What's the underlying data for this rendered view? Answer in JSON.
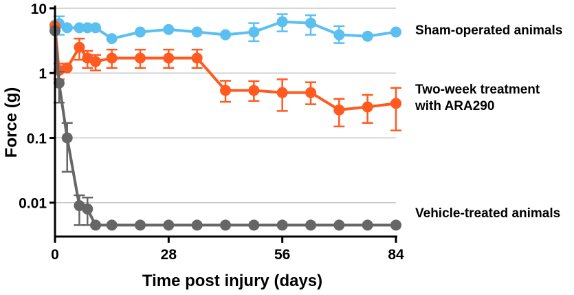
{
  "chart_data": {
    "type": "line",
    "title": "",
    "xlabel": "Time post injury (days)",
    "ylabel": "Force (g)",
    "xlim": [
      0,
      84
    ],
    "ylim": [
      0.003,
      10
    ],
    "y_scale": "log",
    "grid": "horizontal",
    "x_ticks": [
      0,
      28,
      56,
      84
    ],
    "x_tick_labels": [
      "0",
      "28",
      "56",
      "84"
    ],
    "y_ticks": [
      10,
      1,
      0.1,
      0.01
    ],
    "y_tick_labels": [
      "10",
      "1",
      "0.1",
      "0.01"
    ],
    "legend_placement": "right, labels beside line ends",
    "series": [
      {
        "name": "Sham-operated animals",
        "color": "#5bc0f0",
        "x": [
          0,
          1,
          3,
          6,
          8,
          10,
          14,
          21,
          28,
          35,
          42,
          49,
          56,
          63,
          70,
          77,
          84
        ],
        "y": [
          5.5,
          5.8,
          5.0,
          5.0,
          5.0,
          5.0,
          3.4,
          4.3,
          4.7,
          4.3,
          3.9,
          4.3,
          6.2,
          5.9,
          3.9,
          3.7,
          4.3
        ],
        "err_low": [
          null,
          3.9,
          null,
          null,
          null,
          null,
          null,
          null,
          null,
          null,
          null,
          3.1,
          4.4,
          3.9,
          2.9,
          null,
          null
        ],
        "err_high": [
          null,
          7.5,
          null,
          null,
          null,
          null,
          null,
          null,
          null,
          null,
          null,
          5.9,
          8.1,
          7.8,
          5.3,
          null,
          null
        ]
      },
      {
        "name": "Two-week treatment with ARA290",
        "color": "#ff5a1f",
        "x": [
          0,
          1,
          3,
          6,
          8,
          10,
          14,
          21,
          28,
          35,
          42,
          49,
          56,
          63,
          70,
          77,
          84
        ],
        "y": [
          5.3,
          1.1,
          1.2,
          2.5,
          1.7,
          1.5,
          1.7,
          1.7,
          1.7,
          1.7,
          0.54,
          0.54,
          0.5,
          0.5,
          0.27,
          0.3,
          0.34
        ],
        "err_low": [
          null,
          0.8,
          null,
          1.6,
          1.2,
          1.1,
          1.2,
          1.2,
          1.2,
          1.2,
          0.36,
          0.37,
          0.26,
          0.33,
          0.15,
          0.17,
          0.13
        ],
        "err_high": [
          null,
          1.4,
          null,
          3.4,
          2.2,
          1.9,
          2.3,
          2.3,
          2.3,
          2.3,
          0.76,
          0.75,
          0.8,
          0.72,
          0.4,
          0.46,
          0.59
        ]
      },
      {
        "name": "Vehicle-treated animals",
        "color": "#666666",
        "x": [
          0,
          1,
          3,
          6,
          8,
          10,
          14,
          21,
          28,
          35,
          42,
          49,
          56,
          63,
          70,
          77,
          84
        ],
        "y": [
          4.5,
          0.7,
          0.1,
          0.009,
          0.008,
          0.0045,
          0.0045,
          0.0045,
          0.0045,
          0.0045,
          0.0045,
          0.0045,
          0.0045,
          0.0045,
          0.0045,
          0.0045,
          0.0045
        ],
        "err_low": [
          null,
          0.35,
          0.03,
          0.0045,
          0.0045,
          null,
          null,
          null,
          null,
          null,
          null,
          null,
          null,
          null,
          null,
          null,
          null
        ],
        "err_high": [
          null,
          1.05,
          0.17,
          0.013,
          0.012,
          null,
          null,
          null,
          null,
          null,
          null,
          null,
          null,
          null,
          null,
          null,
          null
        ]
      }
    ]
  }
}
